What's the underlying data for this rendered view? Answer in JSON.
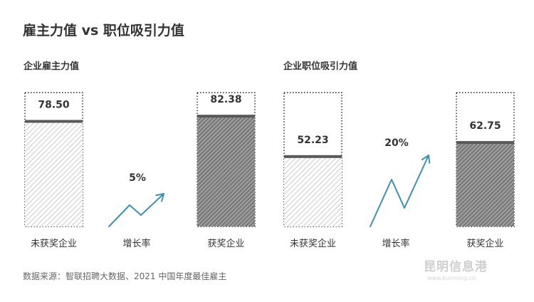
{
  "title": "雇主力值 vs 职位吸引力值",
  "source": "数据来源：智联招聘大数据、2021 中国年度最佳雇主",
  "watermark": {
    "text": "昆明信息港",
    "subtext": "www.kunming.cn"
  },
  "colors": {
    "text": "#333333",
    "arrow": "#3e8fb0",
    "marker": "#595959",
    "hatch_light": "#bdbdbd",
    "hatch_dark": "#555555"
  },
  "chart_data": [
    {
      "type": "bar",
      "title": "企业雇主力值",
      "categories": [
        "未获奖企业",
        "获奖企业"
      ],
      "values": [
        78.5,
        82.38
      ],
      "value_labels": [
        "78.50",
        "82.38"
      ],
      "growth_label": "增长率",
      "growth_value": "5%",
      "ylim": [
        0,
        100
      ]
    },
    {
      "type": "bar",
      "title": "企业职位吸引力值",
      "categories": [
        "未获奖企业",
        "获奖企业"
      ],
      "values": [
        52.23,
        62.75
      ],
      "value_labels": [
        "52.23",
        "62.75"
      ],
      "growth_label": "增长率",
      "growth_value": "20%",
      "ylim": [
        0,
        100
      ]
    }
  ]
}
